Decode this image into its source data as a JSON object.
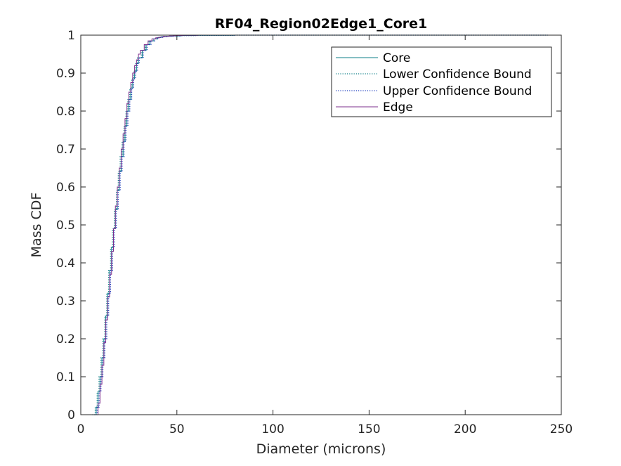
{
  "chart_data": {
    "type": "line",
    "title": "RF04_Region02Edge1_Core1",
    "xlabel": "Diameter (microns)",
    "ylabel": "Mass CDF",
    "xlim": [
      0,
      250
    ],
    "ylim": [
      0,
      1
    ],
    "xticks": [
      "0",
      "50",
      "100",
      "150",
      "200",
      "250"
    ],
    "yticks": [
      "0",
      "0.1",
      "0.2",
      "0.3",
      "0.4",
      "0.5",
      "0.6",
      "0.7",
      "0.8",
      "0.9",
      "1"
    ],
    "grid": false,
    "legend_position": "top-right",
    "series": [
      {
        "name": "Core",
        "style": "solid",
        "color": "#0e7f87",
        "x": [
          6.5,
          8,
          9,
          10,
          11,
          12,
          13,
          14,
          15,
          16,
          17,
          18,
          19,
          20,
          21,
          22,
          23,
          24,
          25,
          26,
          27,
          28,
          29,
          30,
          32,
          34,
          36,
          38,
          40,
          42,
          45,
          48,
          52,
          60,
          80,
          100,
          130,
          243
        ],
        "y": [
          0,
          0.02,
          0.06,
          0.1,
          0.15,
          0.2,
          0.26,
          0.32,
          0.38,
          0.44,
          0.49,
          0.54,
          0.59,
          0.64,
          0.68,
          0.72,
          0.76,
          0.8,
          0.83,
          0.86,
          0.885,
          0.905,
          0.925,
          0.94,
          0.96,
          0.975,
          0.985,
          0.99,
          0.994,
          0.996,
          0.997,
          0.998,
          0.999,
          0.9995,
          1,
          1,
          1,
          1
        ]
      },
      {
        "name": "Lower Confidence Bound",
        "style": "dotted",
        "color": "#0e7f87",
        "x": [
          6,
          7.5,
          8.5,
          9.5,
          10.5,
          11.5,
          12.5,
          13.5,
          14.5,
          15.5,
          16.5,
          17.5,
          18.5,
          19.5,
          20.5,
          21.5,
          22.5,
          23.5,
          24.5,
          25.5,
          26.5,
          27.5,
          28.5,
          29.5,
          31.5,
          33.5,
          35.5,
          37.5,
          39.5,
          41.5,
          44.5,
          47.5,
          51.5,
          59.5,
          79.5,
          99.5,
          129.5,
          243
        ],
        "y": [
          0,
          0.02,
          0.06,
          0.1,
          0.15,
          0.2,
          0.26,
          0.32,
          0.38,
          0.44,
          0.49,
          0.54,
          0.59,
          0.64,
          0.68,
          0.72,
          0.76,
          0.8,
          0.83,
          0.86,
          0.885,
          0.905,
          0.925,
          0.94,
          0.96,
          0.975,
          0.985,
          0.99,
          0.994,
          0.996,
          0.997,
          0.998,
          0.999,
          0.9995,
          1,
          1,
          1,
          1
        ]
      },
      {
        "name": "Upper Confidence Bound",
        "style": "dotted",
        "color": "#1f3fbf",
        "x": [
          7,
          8.5,
          9.5,
          10.5,
          11.5,
          12.5,
          13.5,
          14.5,
          15.5,
          16.5,
          17.5,
          18.5,
          19.5,
          20.5,
          21.5,
          22.5,
          23.5,
          24.5,
          25.5,
          26.5,
          27.5,
          28.5,
          29.5,
          30.5,
          32.5,
          34.5,
          36.5,
          38.5,
          40.5,
          42.5,
          45.5,
          48.5,
          52.5,
          60.5,
          80.5,
          100.5,
          130.5,
          243
        ],
        "y": [
          0,
          0.02,
          0.06,
          0.1,
          0.15,
          0.2,
          0.26,
          0.32,
          0.38,
          0.44,
          0.49,
          0.54,
          0.59,
          0.64,
          0.68,
          0.72,
          0.76,
          0.8,
          0.83,
          0.86,
          0.885,
          0.905,
          0.925,
          0.94,
          0.96,
          0.975,
          0.985,
          0.99,
          0.994,
          0.996,
          0.997,
          0.998,
          0.999,
          0.9995,
          1,
          1,
          1,
          1
        ]
      },
      {
        "name": "Edge",
        "style": "solid",
        "color": "#7e2f8e",
        "x": [
          8,
          9,
          10,
          11,
          12,
          13,
          14,
          15,
          16,
          17,
          18,
          19,
          20,
          21,
          22,
          23,
          24,
          25,
          26,
          27,
          28,
          29,
          30,
          31,
          33,
          35,
          37,
          39,
          41,
          43,
          46,
          49,
          53,
          61,
          81,
          101,
          131,
          243
        ],
        "y": [
          0,
          0.03,
          0.08,
          0.13,
          0.19,
          0.25,
          0.31,
          0.37,
          0.43,
          0.49,
          0.55,
          0.6,
          0.65,
          0.7,
          0.74,
          0.78,
          0.82,
          0.85,
          0.875,
          0.9,
          0.92,
          0.935,
          0.95,
          0.96,
          0.975,
          0.985,
          0.99,
          0.993,
          0.995,
          0.997,
          0.998,
          0.999,
          0.9995,
          1,
          1,
          1,
          1,
          1
        ]
      }
    ]
  }
}
